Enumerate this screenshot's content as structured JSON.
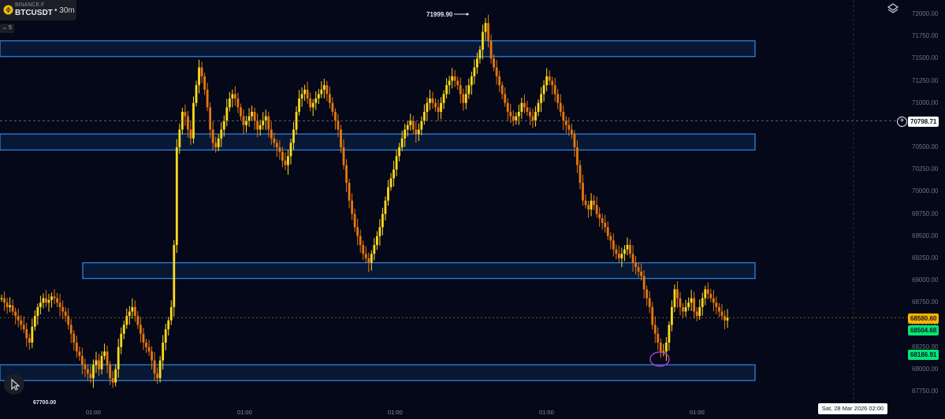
{
  "header": {
    "exchange": "BINANCE.F",
    "symbol": "BTCUSDT",
    "interval": "• 30m"
  },
  "indicator": {
    "chevron": "⌄",
    "value": "5"
  },
  "icons": {
    "logo": "binance-logo-icon",
    "layers": "layers-icon",
    "tool": "cursor-tool-icon",
    "plus": "plus-circle-icon"
  },
  "colors": {
    "background": "#040818",
    "candle_up": "#ffd91c",
    "candle_down": "#e8770c",
    "zone_border": "#2f7fdc",
    "zone_fill": "#0a1e3e",
    "marker": "#b23cd0",
    "last_price": "#ffb300",
    "bid": "#00e676"
  },
  "chart_data": {
    "type": "candlestick",
    "instrument": "BTCUSDT",
    "interval": "30m",
    "y_axis_ticks": [
      72000,
      71750,
      71500,
      71250,
      71000,
      70750,
      70500,
      70250,
      70000,
      69750,
      69500,
      69250,
      69000,
      68750,
      68500,
      68250,
      68000,
      67750
    ],
    "y_axis_labels": [
      "72000.00",
      "71750.00",
      "71500.00",
      "71250.00",
      "71000.00",
      "70750.00",
      "70500.00",
      "70250.00",
      "70000.00",
      "69750.00",
      "69500.00",
      "69250.00",
      "69000.00",
      "68750.00",
      "68500.00",
      "68250.00",
      "68000.00",
      "67750.00"
    ],
    "ylim": [
      67700,
      72050
    ],
    "x_axis_labels": [
      "01:00",
      "01:00",
      "01:00",
      "01:00",
      "01:00"
    ],
    "date_label": "Sat, 28 Mar 2026 02:00",
    "high_label": "71999.90",
    "low_label": "67700.00",
    "price_tags": [
      {
        "name": "crosshair",
        "value": "70798.71"
      },
      {
        "name": "last-price",
        "value": "68580.60"
      },
      {
        "name": "bid",
        "value": "68504.68"
      },
      {
        "name": "ask",
        "value": "68186.91"
      }
    ],
    "zones": [
      {
        "name": "zone-top",
        "y_top": 71700,
        "y_bottom": 71600
      },
      {
        "name": "zone-upper",
        "y_top": 70650,
        "y_bottom": 70470
      },
      {
        "name": "zone-middle",
        "y_top": 69200,
        "y_bottom": 69100
      },
      {
        "name": "zone-bottom",
        "y_top": 68050,
        "y_bottom": 67890
      }
    ],
    "candles_close": [
      68800,
      68750,
      68700,
      68720,
      68650,
      68600,
      68550,
      68500,
      68450,
      68350,
      68300,
      68480,
      68600,
      68700,
      68750,
      68800,
      68750,
      68780,
      68820,
      68800,
      68750,
      68700,
      68650,
      68600,
      68500,
      68400,
      68300,
      68200,
      68150,
      68050,
      68000,
      67950,
      67900,
      68050,
      68100,
      68000,
      68150,
      68200,
      68050,
      67900,
      67850,
      68000,
      68250,
      68400,
      68500,
      68600,
      68650,
      68700,
      68600,
      68500,
      68400,
      68300,
      68250,
      68200,
      68100,
      67950,
      67900,
      68100,
      68300,
      68450,
      68550,
      68700,
      69400,
      70500,
      70700,
      70900,
      70850,
      70700,
      70600,
      71000,
      71200,
      71400,
      71300,
      71150,
      70950,
      70700,
      70550,
      70500,
      70600,
      70700,
      70800,
      70950,
      71050,
      71100,
      71050,
      70950,
      70850,
      70750,
      70800,
      70850,
      70900,
      70800,
      70700,
      70750,
      70800,
      70850,
      70700,
      70600,
      70550,
      70500,
      70450,
      70350,
      70300,
      70400,
      70550,
      70700,
      70900,
      71050,
      71100,
      71150,
      71050,
      70950,
      71000,
      71050,
      71100,
      71150,
      71200,
      71100,
      71000,
      70900,
      70800,
      70700,
      70500,
      70300,
      70100,
      69900,
      69750,
      69600,
      69500,
      69400,
      69300,
      69250,
      69200,
      69300,
      69400,
      69500,
      69600,
      69750,
      69900,
      70050,
      70150,
      70250,
      70400,
      70500,
      70600,
      70700,
      70750,
      70800,
      70700,
      70650,
      70700,
      70800,
      70900,
      71000,
      71050,
      71000,
      70950,
      70900,
      71000,
      71100,
      71200,
      71250,
      71300,
      71250,
      71200,
      71100,
      71000,
      71100,
      71200,
      71300,
      71400,
      71500,
      71600,
      71800,
      71900,
      71700,
      71500,
      71400,
      71300,
      71200,
      71100,
      71000,
      70900,
      70850,
      70800,
      70850,
      70900,
      71000,
      70950,
      70900,
      70850,
      70800,
      70900,
      71000,
      71100,
      71200,
      71300,
      71250,
      71200,
      71100,
      71000,
      70900,
      70800,
      70750,
      70700,
      70650,
      70500,
      70300,
      70100,
      69900,
      69850,
      69800,
      69900,
      69850,
      69750,
      69700,
      69650,
      69600,
      69500,
      69450,
      69350,
      69300,
      69250,
      69300,
      69350,
      69400,
      69300,
      69200,
      69150,
      69100,
      69050,
      68900,
      68800,
      68700,
      68500,
      68400,
      68300,
      68200,
      68200,
      68300,
      68500,
      68700,
      68900,
      68800,
      68700,
      68650,
      68700,
      68750,
      68800,
      68650,
      68600,
      68700,
      68800,
      68900,
      68850,
      68800,
      68750,
      68700,
      68650,
      68600,
      68550,
      68580
    ]
  }
}
